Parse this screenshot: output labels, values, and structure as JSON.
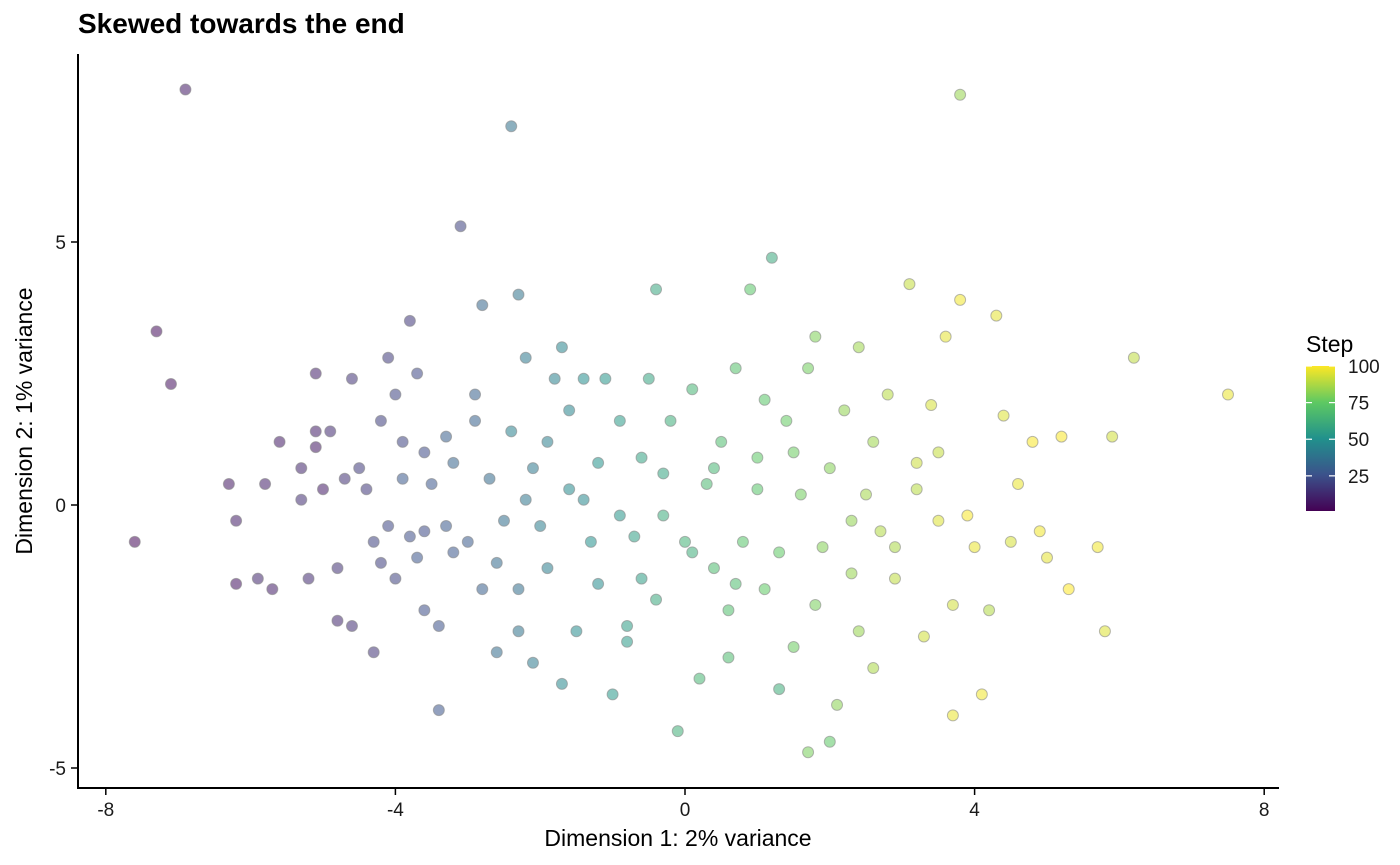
{
  "chart_data": {
    "type": "scatter",
    "title": "Skewed towards the end",
    "xlabel": "Dimension 1: 2% variance",
    "ylabel": "Dimension 2: 1% variance",
    "xlim": [
      -8.3,
      8.3
    ],
    "ylim": [
      -5.3,
      8.0
    ],
    "xticks": [
      -8,
      -4,
      0,
      4,
      8
    ],
    "xtick_labels": [
      "-8",
      "-4",
      "0",
      "4",
      "8"
    ],
    "yticks": [
      -5,
      0,
      5
    ],
    "ytick_labels": [
      "-5",
      "0",
      "5"
    ],
    "grid": false,
    "legend": {
      "title": "Step",
      "position": "right",
      "ticks": [
        25,
        50,
        75,
        100
      ],
      "tick_labels": [
        "25",
        "50",
        "75",
        "100"
      ],
      "range": [
        1,
        100
      ]
    },
    "colors": [
      "#440154",
      "#3b528b",
      "#21918c",
      "#5ec962",
      "#fde725"
    ],
    "point_opacity": 0.55,
    "points": [
      {
        "x": -7.6,
        "y": -0.7,
        "step": 3
      },
      {
        "x": -7.3,
        "y": 3.3,
        "step": 4
      },
      {
        "x": -7.1,
        "y": 2.3,
        "step": 5
      },
      {
        "x": -6.9,
        "y": 7.9,
        "step": 8
      },
      {
        "x": -6.3,
        "y": 0.4,
        "step": 7
      },
      {
        "x": -6.2,
        "y": -0.3,
        "step": 9
      },
      {
        "x": -6.2,
        "y": -1.5,
        "step": 6
      },
      {
        "x": -5.8,
        "y": 0.4,
        "step": 10
      },
      {
        "x": -5.9,
        "y": -1.4,
        "step": 12
      },
      {
        "x": -5.7,
        "y": -1.6,
        "step": 9
      },
      {
        "x": -5.6,
        "y": 1.2,
        "step": 8
      },
      {
        "x": -5.3,
        "y": 0.7,
        "step": 11
      },
      {
        "x": -5.3,
        "y": 0.1,
        "step": 14
      },
      {
        "x": -5.2,
        "y": -1.4,
        "step": 13
      },
      {
        "x": -5.1,
        "y": 2.5,
        "step": 10
      },
      {
        "x": -5.1,
        "y": 1.4,
        "step": 9
      },
      {
        "x": -5.1,
        "y": 1.1,
        "step": 7
      },
      {
        "x": -5.0,
        "y": 0.3,
        "step": 8
      },
      {
        "x": -4.9,
        "y": 1.4,
        "step": 13
      },
      {
        "x": -4.8,
        "y": -1.2,
        "step": 15
      },
      {
        "x": -4.8,
        "y": -2.2,
        "step": 12
      },
      {
        "x": -4.6,
        "y": 2.4,
        "step": 16
      },
      {
        "x": -4.6,
        "y": -2.3,
        "step": 14
      },
      {
        "x": -4.5,
        "y": 0.7,
        "step": 18
      },
      {
        "x": -4.4,
        "y": 0.3,
        "step": 17
      },
      {
        "x": -4.3,
        "y": -2.8,
        "step": 16
      },
      {
        "x": -4.3,
        "y": -0.7,
        "step": 20
      },
      {
        "x": -4.2,
        "y": 1.6,
        "step": 19
      },
      {
        "x": -4.1,
        "y": 2.8,
        "step": 18
      },
      {
        "x": -4.1,
        "y": -0.4,
        "step": 22
      },
      {
        "x": -4.0,
        "y": 2.1,
        "step": 21
      },
      {
        "x": -4.0,
        "y": -1.4,
        "step": 20
      },
      {
        "x": -3.9,
        "y": 0.5,
        "step": 28
      },
      {
        "x": -3.8,
        "y": 3.5,
        "step": 17
      },
      {
        "x": -3.8,
        "y": -0.6,
        "step": 24
      },
      {
        "x": -3.7,
        "y": 2.5,
        "step": 22
      },
      {
        "x": -3.7,
        "y": -1.0,
        "step": 26
      },
      {
        "x": -3.6,
        "y": 1.0,
        "step": 23
      },
      {
        "x": -3.6,
        "y": -2.0,
        "step": 24
      },
      {
        "x": -3.5,
        "y": 0.4,
        "step": 27
      },
      {
        "x": -3.4,
        "y": -2.3,
        "step": 25
      },
      {
        "x": -3.4,
        "y": -3.9,
        "step": 26
      },
      {
        "x": -3.3,
        "y": 1.3,
        "step": 30
      },
      {
        "x": -3.3,
        "y": -0.4,
        "step": 28
      },
      {
        "x": -3.2,
        "y": 0.8,
        "step": 32
      },
      {
        "x": -3.1,
        "y": 5.3,
        "step": 20
      },
      {
        "x": -3.0,
        "y": -0.7,
        "step": 29
      },
      {
        "x": -2.9,
        "y": 1.6,
        "step": 31
      },
      {
        "x": -2.8,
        "y": 3.8,
        "step": 33
      },
      {
        "x": -2.8,
        "y": -1.6,
        "step": 30
      },
      {
        "x": -2.7,
        "y": 0.5,
        "step": 34
      },
      {
        "x": -2.6,
        "y": -2.8,
        "step": 35
      },
      {
        "x": -2.5,
        "y": -0.3,
        "step": 36
      },
      {
        "x": -2.4,
        "y": 7.2,
        "step": 37
      },
      {
        "x": -2.4,
        "y": 1.4,
        "step": 44
      },
      {
        "x": -2.3,
        "y": 4.0,
        "step": 38
      },
      {
        "x": -2.3,
        "y": -1.6,
        "step": 36
      },
      {
        "x": -2.2,
        "y": 2.8,
        "step": 40
      },
      {
        "x": -2.2,
        "y": 0.1,
        "step": 39
      },
      {
        "x": -2.1,
        "y": -3.0,
        "step": 41
      },
      {
        "x": -2.0,
        "y": -0.4,
        "step": 42
      },
      {
        "x": -1.9,
        "y": 1.2,
        "step": 43
      },
      {
        "x": -1.8,
        "y": 2.4,
        "step": 44
      },
      {
        "x": -1.7,
        "y": 3.0,
        "step": 45
      },
      {
        "x": -1.7,
        "y": -3.4,
        "step": 46
      },
      {
        "x": -1.6,
        "y": 0.3,
        "step": 47
      },
      {
        "x": -1.5,
        "y": -2.4,
        "step": 48
      },
      {
        "x": -1.4,
        "y": 2.4,
        "step": 49
      },
      {
        "x": -1.3,
        "y": -0.7,
        "step": 50
      },
      {
        "x": -1.2,
        "y": 0.8,
        "step": 51
      },
      {
        "x": -1.1,
        "y": 2.4,
        "step": 52
      },
      {
        "x": -1.0,
        "y": -3.6,
        "step": 53
      },
      {
        "x": -0.9,
        "y": 1.6,
        "step": 54
      },
      {
        "x": -0.8,
        "y": -2.3,
        "step": 55
      },
      {
        "x": -0.7,
        "y": -0.6,
        "step": 56
      },
      {
        "x": -0.6,
        "y": 0.9,
        "step": 57
      },
      {
        "x": -0.5,
        "y": 2.4,
        "step": 58
      },
      {
        "x": -0.4,
        "y": 4.1,
        "step": 59
      },
      {
        "x": -0.4,
        "y": -1.8,
        "step": 60
      },
      {
        "x": -0.3,
        "y": -0.2,
        "step": 61
      },
      {
        "x": -0.2,
        "y": 1.6,
        "step": 62
      },
      {
        "x": -0.1,
        "y": -4.3,
        "step": 63
      },
      {
        "x": 0.0,
        "y": -0.7,
        "step": 64
      },
      {
        "x": 0.1,
        "y": 2.2,
        "step": 65
      },
      {
        "x": 0.2,
        "y": -3.3,
        "step": 66
      },
      {
        "x": 0.3,
        "y": 0.4,
        "step": 67
      },
      {
        "x": 0.4,
        "y": -1.2,
        "step": 68
      },
      {
        "x": 0.5,
        "y": 1.2,
        "step": 69
      },
      {
        "x": 0.6,
        "y": -2.0,
        "step": 70
      },
      {
        "x": 0.7,
        "y": 2.6,
        "step": 71
      },
      {
        "x": 0.8,
        "y": -0.7,
        "step": 72
      },
      {
        "x": 0.9,
        "y": 4.1,
        "step": 73
      },
      {
        "x": 1.0,
        "y": 0.9,
        "step": 74
      },
      {
        "x": 1.1,
        "y": -1.6,
        "step": 75
      },
      {
        "x": 1.2,
        "y": 4.7,
        "step": 60
      },
      {
        "x": 1.3,
        "y": -3.5,
        "step": 62
      },
      {
        "x": 1.4,
        "y": 1.6,
        "step": 76
      },
      {
        "x": 1.5,
        "y": -2.7,
        "step": 77
      },
      {
        "x": 1.6,
        "y": 0.2,
        "step": 78
      },
      {
        "x": 1.7,
        "y": -4.7,
        "step": 79
      },
      {
        "x": 1.8,
        "y": 3.2,
        "step": 80
      },
      {
        "x": 1.9,
        "y": -0.8,
        "step": 81
      },
      {
        "x": 2.0,
        "y": -4.5,
        "step": 74
      },
      {
        "x": 2.1,
        "y": -3.8,
        "step": 82
      },
      {
        "x": 2.2,
        "y": 1.8,
        "step": 83
      },
      {
        "x": 2.3,
        "y": -1.3,
        "step": 84
      },
      {
        "x": 2.4,
        "y": 3.0,
        "step": 85
      },
      {
        "x": 2.5,
        "y": 0.2,
        "step": 86
      },
      {
        "x": 2.6,
        "y": -3.1,
        "step": 87
      },
      {
        "x": 2.7,
        "y": -0.5,
        "step": 88
      },
      {
        "x": 2.8,
        "y": 2.1,
        "step": 89
      },
      {
        "x": 2.9,
        "y": -1.4,
        "step": 90
      },
      {
        "x": 3.1,
        "y": 4.2,
        "step": 91
      },
      {
        "x": 3.2,
        "y": 0.8,
        "step": 92
      },
      {
        "x": 3.3,
        "y": -2.5,
        "step": 93
      },
      {
        "x": 3.4,
        "y": 1.9,
        "step": 94
      },
      {
        "x": 3.5,
        "y": -0.3,
        "step": 95
      },
      {
        "x": 3.6,
        "y": 3.2,
        "step": 96
      },
      {
        "x": 3.7,
        "y": -4.0,
        "step": 97
      },
      {
        "x": 3.8,
        "y": 7.8,
        "step": 84
      },
      {
        "x": 3.8,
        "y": 3.9,
        "step": 98
      },
      {
        "x": 3.9,
        "y": -0.2,
        "step": 99
      },
      {
        "x": 4.0,
        "y": -0.8,
        "step": 97
      },
      {
        "x": 4.1,
        "y": -3.6,
        "step": 98
      },
      {
        "x": 4.2,
        "y": -2.0,
        "step": 88
      },
      {
        "x": 4.3,
        "y": 3.6,
        "step": 96
      },
      {
        "x": 4.4,
        "y": 1.7,
        "step": 95
      },
      {
        "x": 4.5,
        "y": -0.7,
        "step": 94
      },
      {
        "x": 4.6,
        "y": 0.4,
        "step": 97
      },
      {
        "x": 4.8,
        "y": 1.2,
        "step": 99
      },
      {
        "x": 4.9,
        "y": -0.5,
        "step": 98
      },
      {
        "x": 5.0,
        "y": -1.0,
        "step": 96
      },
      {
        "x": 5.2,
        "y": 1.3,
        "step": 99
      },
      {
        "x": 5.3,
        "y": -1.6,
        "step": 100
      },
      {
        "x": 5.7,
        "y": -0.8,
        "step": 98
      },
      {
        "x": 5.8,
        "y": -2.4,
        "step": 95
      },
      {
        "x": 5.9,
        "y": 1.3,
        "step": 93
      },
      {
        "x": 6.2,
        "y": 2.8,
        "step": 90
      },
      {
        "x": 7.5,
        "y": 2.1,
        "step": 97
      },
      {
        "x": -3.6,
        "y": -0.5,
        "step": 23
      },
      {
        "x": -3.2,
        "y": -0.9,
        "step": 27
      },
      {
        "x": -2.9,
        "y": 2.1,
        "step": 31
      },
      {
        "x": -2.6,
        "y": -1.1,
        "step": 34
      },
      {
        "x": -2.1,
        "y": 0.7,
        "step": 40
      },
      {
        "x": -1.9,
        "y": -1.2,
        "step": 42
      },
      {
        "x": -1.4,
        "y": 0.1,
        "step": 46
      },
      {
        "x": -1.2,
        "y": -1.5,
        "step": 48
      },
      {
        "x": -0.9,
        "y": -0.2,
        "step": 52
      },
      {
        "x": -0.6,
        "y": -1.4,
        "step": 55
      },
      {
        "x": -0.3,
        "y": 0.6,
        "step": 58
      },
      {
        "x": 0.1,
        "y": -0.9,
        "step": 62
      },
      {
        "x": 0.4,
        "y": 0.7,
        "step": 66
      },
      {
        "x": 0.7,
        "y": -1.5,
        "step": 69
      },
      {
        "x": 1.0,
        "y": 0.3,
        "step": 72
      },
      {
        "x": 1.3,
        "y": -0.9,
        "step": 75
      },
      {
        "x": 1.5,
        "y": 1.0,
        "step": 77
      },
      {
        "x": 1.8,
        "y": -1.9,
        "step": 79
      },
      {
        "x": 2.0,
        "y": 0.7,
        "step": 81
      },
      {
        "x": 2.3,
        "y": -0.3,
        "step": 83
      },
      {
        "x": 2.6,
        "y": 1.2,
        "step": 85
      },
      {
        "x": 2.9,
        "y": -0.8,
        "step": 87
      },
      {
        "x": 3.2,
        "y": 0.3,
        "step": 89
      },
      {
        "x": 3.5,
        "y": 1.0,
        "step": 91
      },
      {
        "x": 3.7,
        "y": -1.9,
        "step": 93
      },
      {
        "x": 1.1,
        "y": 2.0,
        "step": 73
      },
      {
        "x": 1.7,
        "y": 2.6,
        "step": 78
      },
      {
        "x": 2.4,
        "y": -2.4,
        "step": 84
      },
      {
        "x": 0.6,
        "y": -2.9,
        "step": 68
      },
      {
        "x": -0.8,
        "y": -2.6,
        "step": 54
      },
      {
        "x": -2.3,
        "y": -2.4,
        "step": 38
      },
      {
        "x": -4.2,
        "y": -1.1,
        "step": 19
      },
      {
        "x": -4.7,
        "y": 0.5,
        "step": 15
      },
      {
        "x": -3.9,
        "y": 1.2,
        "step": 21
      },
      {
        "x": -1.6,
        "y": 1.8,
        "step": 45
      }
    ]
  }
}
